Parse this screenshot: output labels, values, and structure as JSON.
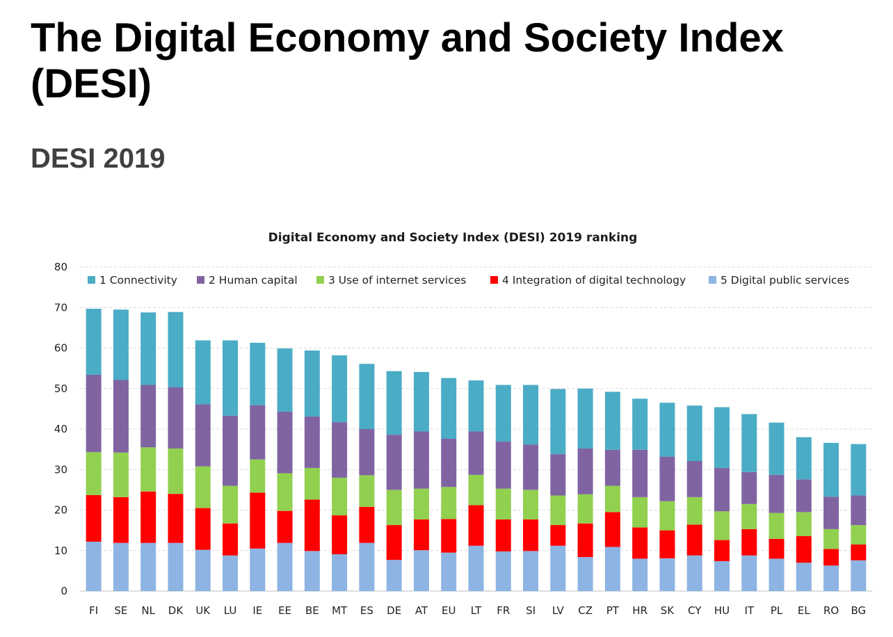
{
  "header": {
    "title": "The Digital Economy and Society Index (DESI)",
    "subtitle": "DESI 2019"
  },
  "colors": {
    "connectivity": "#4bacc6",
    "human_capital": "#8064a2",
    "internet_services": "#92d050",
    "digital_technology": "#ff0000",
    "public_services": "#8db4e2",
    "gridline": "#d9d9d9",
    "axis": "#bfbfbf"
  },
  "chart_data": {
    "type": "bar",
    "stacked": true,
    "title": "Digital Economy and Society Index (DESI) 2019 ranking",
    "xlabel": "",
    "ylabel": "",
    "ylim": [
      0,
      80
    ],
    "yticks": [
      0,
      10,
      20,
      30,
      40,
      50,
      60,
      70,
      80
    ],
    "grid": true,
    "legend_position": "top",
    "categories": [
      "FI",
      "SE",
      "NL",
      "DK",
      "UK",
      "LU",
      "IE",
      "EE",
      "BE",
      "MT",
      "ES",
      "DE",
      "AT",
      "EU",
      "LT",
      "FR",
      "SI",
      "LV",
      "CZ",
      "PT",
      "HR",
      "SK",
      "CY",
      "HU",
      "IT",
      "PL",
      "EL",
      "RO",
      "BG"
    ],
    "series": [
      {
        "name": "5 Digital public services",
        "color_key": "public_services",
        "values": [
          12.2,
          11.9,
          11.9,
          11.9,
          10.2,
          8.8,
          10.5,
          11.9,
          9.9,
          9.1,
          11.9,
          7.7,
          10.1,
          9.5,
          11.2,
          9.8,
          9.9,
          11.2,
          8.4,
          10.9,
          8.0,
          8.1,
          8.8,
          7.4,
          8.8,
          8.0,
          7.0,
          6.3,
          7.6
        ]
      },
      {
        "name": "4 Integration of digital technology",
        "color_key": "digital_technology",
        "values": [
          11.5,
          11.3,
          12.7,
          12.1,
          10.3,
          7.9,
          13.8,
          7.9,
          12.7,
          9.6,
          8.9,
          8.6,
          7.6,
          8.3,
          10.0,
          7.9,
          7.8,
          5.1,
          8.3,
          8.6,
          7.7,
          6.9,
          7.6,
          5.2,
          6.5,
          4.9,
          6.6,
          4.1,
          3.9
        ]
      },
      {
        "name": "3 Use of internet services",
        "color_key": "internet_services",
        "values": [
          10.6,
          11.0,
          10.9,
          11.2,
          10.3,
          9.3,
          8.2,
          9.3,
          7.8,
          9.3,
          7.8,
          8.7,
          7.6,
          7.9,
          7.5,
          7.6,
          7.3,
          7.3,
          7.2,
          6.5,
          7.5,
          7.2,
          6.8,
          7.1,
          6.2,
          6.4,
          5.9,
          4.9,
          4.8
        ]
      },
      {
        "name": "2 Human capital",
        "color_key": "human_capital",
        "values": [
          19.1,
          17.9,
          15.4,
          15.1,
          15.3,
          17.3,
          13.4,
          15.2,
          12.7,
          13.7,
          11.4,
          13.6,
          14.1,
          11.9,
          10.7,
          11.6,
          11.2,
          10.2,
          11.3,
          8.9,
          11.7,
          11.0,
          8.9,
          10.7,
          7.9,
          9.4,
          8.1,
          8.0,
          7.3
        ]
      },
      {
        "name": "1 Connectivity",
        "color_key": "connectivity",
        "values": [
          16.3,
          17.4,
          17.9,
          18.6,
          15.8,
          18.6,
          15.4,
          15.6,
          16.3,
          16.5,
          16.1,
          15.7,
          14.7,
          15.0,
          12.6,
          14.0,
          14.7,
          16.1,
          14.8,
          14.3,
          12.6,
          13.3,
          13.7,
          15.0,
          14.3,
          12.9,
          10.4,
          13.3,
          12.7
        ]
      }
    ],
    "totals": [
      69.9,
      69.5,
      68.8,
      68.9,
      61.9,
      61.9,
      61.3,
      59.9,
      59.4,
      58.2,
      56.1,
      54.3,
      54.1,
      52.6,
      52.0,
      50.9,
      50.9,
      49.9,
      50.0,
      49.2,
      47.5,
      46.5,
      45.8,
      45.4,
      43.7,
      41.6,
      38.0,
      36.6,
      36.3
    ],
    "legend": [
      {
        "label": "1 Connectivity",
        "color_key": "connectivity"
      },
      {
        "label": "2 Human capital",
        "color_key": "human_capital"
      },
      {
        "label": "3 Use of internet services",
        "color_key": "internet_services"
      },
      {
        "label": "4 Integration of digital technology",
        "color_key": "digital_technology"
      },
      {
        "label": "5 Digital public services",
        "color_key": "public_services"
      }
    ]
  }
}
